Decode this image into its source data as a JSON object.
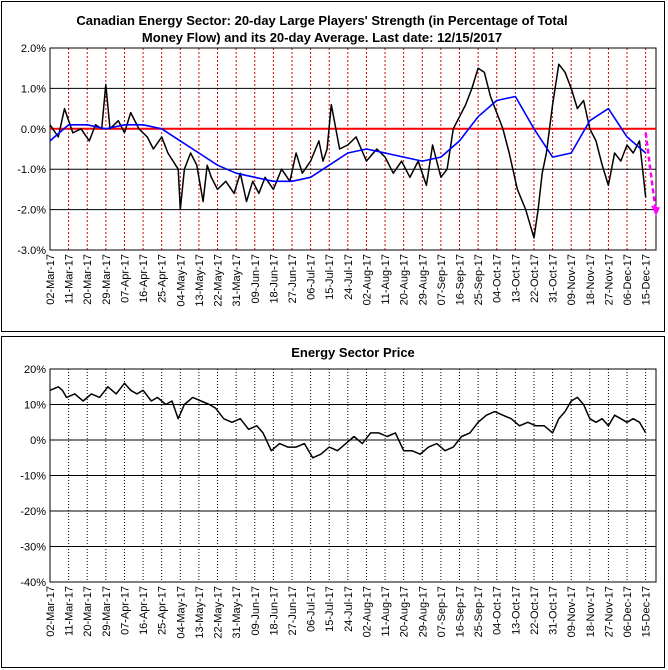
{
  "chart_data": [
    {
      "type": "line",
      "title_line1": "Canadian Energy Sector: 20-day Large Players' Strength (in Percentage of Total",
      "title_line2": "Money Flow) and its 20-day Average. Last date: 12/15/2017",
      "xlabel": "",
      "ylabel": "",
      "ylim": [
        -0.03,
        0.02
      ],
      "yticks": [
        "2.0%",
        "1.0%",
        "0.0%",
        "-1.0%",
        "-2.0%",
        "-3.0%"
      ],
      "ytick_values": [
        0.02,
        0.01,
        0.0,
        -0.01,
        -0.02,
        -0.03
      ],
      "xticks": [
        "02-Mar-17",
        "11-Mar-17",
        "20-Mar-17",
        "29-Mar-17",
        "07-Apr-17",
        "16-Apr-17",
        "25-Apr-17",
        "04-May-17",
        "13-May-17",
        "22-May-17",
        "31-May-17",
        "09-Jun-17",
        "18-Jun-17",
        "27-Jun-17",
        "06-Jul-17",
        "15-Jul-17",
        "24-Jul-17",
        "02-Aug-17",
        "11-Aug-17",
        "20-Aug-17",
        "29-Aug-17",
        "07-Sep-17",
        "16-Sep-17",
        "25-Sep-17",
        "04-Oct-17",
        "13-Oct-17",
        "22-Oct-17",
        "31-Oct-17",
        "09-Nov-17",
        "18-Nov-17",
        "27-Nov-17",
        "06-Dec-17",
        "15-Dec-17"
      ],
      "grid": true,
      "colors": {
        "strength": "#000000",
        "average": "#0000ff",
        "zero_line": "#ff0000",
        "projection": "#ff00ff",
        "vgrid": "#d40000"
      },
      "series": [
        {
          "key": "strength",
          "x": [
            "02-Mar-17",
            "06-Mar-17",
            "09-Mar-17",
            "13-Mar-17",
            "17-Mar-17",
            "21-Mar-17",
            "24-Mar-17",
            "27-Mar-17",
            "29-Mar-17",
            "31-Mar-17",
            "04-Apr-17",
            "07-Apr-17",
            "10-Apr-17",
            "14-Apr-17",
            "18-Apr-17",
            "21-Apr-17",
            "25-Apr-17",
            "28-Apr-17",
            "03-May-17",
            "04-May-17",
            "06-May-17",
            "09-May-17",
            "12-May-17",
            "15-May-17",
            "17-May-17",
            "19-May-17",
            "22-May-17",
            "26-May-17",
            "30-May-17",
            "02-Jun-17",
            "05-Jun-17",
            "08-Jun-17",
            "11-Jun-17",
            "14-Jun-17",
            "18-Jun-17",
            "22-Jun-17",
            "26-Jun-17",
            "29-Jun-17",
            "02-Jul-17",
            "06-Jul-17",
            "10-Jul-17",
            "12-Jul-17",
            "14-Jul-17",
            "16-Jul-17",
            "20-Jul-17",
            "24-Jul-17",
            "28-Jul-17",
            "02-Aug-17",
            "07-Aug-17",
            "11-Aug-17",
            "15-Aug-17",
            "19-Aug-17",
            "23-Aug-17",
            "27-Aug-17",
            "31-Aug-17",
            "03-Sep-17",
            "07-Sep-17",
            "10-Sep-17",
            "13-Sep-17",
            "16-Sep-17",
            "19-Sep-17",
            "22-Sep-17",
            "25-Sep-17",
            "28-Sep-17",
            "01-Oct-17",
            "04-Oct-17",
            "07-Oct-17",
            "10-Oct-17",
            "14-Oct-17",
            "18-Oct-17",
            "22-Oct-17",
            "24-Oct-17",
            "26-Oct-17",
            "28-Oct-17",
            "31-Oct-17",
            "03-Nov-17",
            "06-Nov-17",
            "09-Nov-17",
            "12-Nov-17",
            "15-Nov-17",
            "18-Nov-17",
            "21-Nov-17",
            "24-Nov-17",
            "27-Nov-17",
            "30-Nov-17",
            "03-Dec-17",
            "06-Dec-17",
            "09-Dec-17",
            "12-Dec-17",
            "15-Dec-17"
          ],
          "values": [
            0.001,
            -0.002,
            0.005,
            -0.001,
            0.0,
            -0.003,
            0.001,
            0.0,
            0.011,
            0.0,
            0.002,
            -0.001,
            0.004,
            0.0,
            -0.002,
            -0.005,
            -0.002,
            -0.006,
            -0.01,
            -0.02,
            -0.01,
            -0.006,
            -0.009,
            -0.018,
            -0.009,
            -0.012,
            -0.015,
            -0.013,
            -0.016,
            -0.011,
            -0.018,
            -0.013,
            -0.016,
            -0.012,
            -0.015,
            -0.01,
            -0.013,
            -0.006,
            -0.011,
            -0.008,
            -0.003,
            -0.008,
            -0.005,
            0.006,
            -0.005,
            -0.004,
            -0.002,
            -0.008,
            -0.005,
            -0.007,
            -0.011,
            -0.008,
            -0.012,
            -0.008,
            -0.014,
            -0.004,
            -0.012,
            -0.01,
            0.0,
            0.003,
            0.006,
            0.01,
            0.015,
            0.014,
            0.008,
            0.004,
            0.0,
            -0.006,
            -0.015,
            -0.02,
            -0.027,
            -0.02,
            -0.011,
            -0.006,
            0.006,
            0.016,
            0.014,
            0.01,
            0.005,
            0.007,
            0.0,
            -0.003,
            -0.009,
            -0.014,
            -0.006,
            -0.008,
            -0.004,
            -0.006,
            -0.003,
            -0.017
          ]
        },
        {
          "key": "average",
          "x": [
            "02-Mar-17",
            "11-Mar-17",
            "20-Mar-17",
            "29-Mar-17",
            "07-Apr-17",
            "16-Apr-17",
            "25-Apr-17",
            "04-May-17",
            "13-May-17",
            "22-May-17",
            "31-May-17",
            "09-Jun-17",
            "18-Jun-17",
            "27-Jun-17",
            "06-Jul-17",
            "15-Jul-17",
            "24-Jul-17",
            "02-Aug-17",
            "11-Aug-17",
            "20-Aug-17",
            "29-Aug-17",
            "07-Sep-17",
            "16-Sep-17",
            "25-Sep-17",
            "04-Oct-17",
            "13-Oct-17",
            "22-Oct-17",
            "31-Oct-17",
            "09-Nov-17",
            "18-Nov-17",
            "27-Nov-17",
            "06-Dec-17",
            "15-Dec-17"
          ],
          "values": [
            -0.003,
            0.001,
            0.001,
            0.0,
            0.001,
            0.001,
            0.0,
            -0.003,
            -0.006,
            -0.009,
            -0.011,
            -0.012,
            -0.013,
            -0.013,
            -0.012,
            -0.009,
            -0.006,
            -0.005,
            -0.006,
            -0.007,
            -0.008,
            -0.007,
            -0.003,
            0.003,
            0.007,
            0.008,
            0.0,
            -0.007,
            -0.006,
            0.002,
            0.005,
            -0.002,
            -0.006
          ]
        },
        {
          "key": "projection",
          "x": [
            "15-Dec-17",
            "20-Dec-17"
          ],
          "values": [
            -0.001,
            -0.021
          ]
        }
      ]
    },
    {
      "type": "line",
      "title": "Energy Sector Price",
      "xlabel": "",
      "ylabel": "",
      "ylim": [
        -0.4,
        0.2
      ],
      "yticks": [
        "20%",
        "10%",
        "0%",
        "-10%",
        "-20%",
        "-30%",
        "-40%"
      ],
      "ytick_values": [
        0.2,
        0.1,
        0.0,
        -0.1,
        -0.2,
        -0.3,
        -0.4
      ],
      "xticks": [
        "02-Mar-17",
        "11-Mar-17",
        "20-Mar-17",
        "29-Mar-17",
        "07-Apr-17",
        "16-Apr-17",
        "25-Apr-17",
        "04-May-17",
        "13-May-17",
        "22-May-17",
        "31-May-17",
        "09-Jun-17",
        "18-Jun-17",
        "27-Jun-17",
        "06-Jul-17",
        "15-Jul-17",
        "24-Jul-17",
        "02-Aug-17",
        "11-Aug-17",
        "20-Aug-17",
        "29-Aug-17",
        "07-Sep-17",
        "16-Sep-17",
        "25-Sep-17",
        "04-Oct-17",
        "13-Oct-17",
        "22-Oct-17",
        "31-Oct-17",
        "09-Nov-17",
        "18-Nov-17",
        "27-Nov-17",
        "06-Dec-17",
        "15-Dec-17"
      ],
      "grid": true,
      "colors": {
        "price": "#000000"
      },
      "series": [
        {
          "key": "price",
          "x": [
            "02-Mar-17",
            "06-Mar-17",
            "08-Mar-17",
            "10-Mar-17",
            "14-Mar-17",
            "18-Mar-17",
            "22-Mar-17",
            "26-Mar-17",
            "30-Mar-17",
            "03-Apr-17",
            "07-Apr-17",
            "10-Apr-17",
            "13-Apr-17",
            "16-Apr-17",
            "20-Apr-17",
            "23-Apr-17",
            "27-Apr-17",
            "30-Apr-17",
            "03-May-17",
            "06-May-17",
            "10-May-17",
            "14-May-17",
            "18-May-17",
            "21-May-17",
            "25-May-17",
            "29-May-17",
            "02-Jun-17",
            "06-Jun-17",
            "10-Jun-17",
            "13-Jun-17",
            "17-Jun-17",
            "21-Jun-17",
            "25-Jun-17",
            "29-Jun-17",
            "03-Jul-17",
            "07-Jul-17",
            "11-Jul-17",
            "15-Jul-17",
            "19-Jul-17",
            "23-Jul-17",
            "27-Jul-17",
            "31-Jul-17",
            "04-Aug-17",
            "08-Aug-17",
            "12-Aug-17",
            "16-Aug-17",
            "20-Aug-17",
            "24-Aug-17",
            "28-Aug-17",
            "01-Sep-17",
            "05-Sep-17",
            "09-Sep-17",
            "13-Sep-17",
            "17-Sep-17",
            "21-Sep-17",
            "25-Sep-17",
            "29-Sep-17",
            "03-Oct-17",
            "07-Oct-17",
            "11-Oct-17",
            "15-Oct-17",
            "19-Oct-17",
            "23-Oct-17",
            "27-Oct-17",
            "31-Oct-17",
            "03-Nov-17",
            "06-Nov-17",
            "09-Nov-17",
            "12-Nov-17",
            "15-Nov-17",
            "18-Nov-17",
            "21-Nov-17",
            "24-Nov-17",
            "27-Nov-17",
            "30-Nov-17",
            "03-Dec-17",
            "06-Dec-17",
            "09-Dec-17",
            "12-Dec-17",
            "15-Dec-17"
          ],
          "values": [
            0.14,
            0.15,
            0.14,
            0.12,
            0.13,
            0.11,
            0.13,
            0.12,
            0.15,
            0.13,
            0.16,
            0.14,
            0.13,
            0.14,
            0.11,
            0.12,
            0.1,
            0.11,
            0.06,
            0.1,
            0.12,
            0.11,
            0.1,
            0.09,
            0.06,
            0.05,
            0.06,
            0.03,
            0.04,
            0.02,
            -0.03,
            -0.01,
            -0.02,
            -0.02,
            -0.01,
            -0.05,
            -0.04,
            -0.02,
            -0.03,
            -0.01,
            0.01,
            -0.01,
            0.02,
            0.02,
            0.01,
            0.02,
            -0.03,
            -0.03,
            -0.04,
            -0.02,
            -0.01,
            -0.03,
            -0.02,
            0.01,
            0.02,
            0.05,
            0.07,
            0.08,
            0.07,
            0.06,
            0.04,
            0.05,
            0.04,
            0.04,
            0.02,
            0.06,
            0.08,
            0.11,
            0.12,
            0.1,
            0.06,
            0.05,
            0.06,
            0.04,
            0.07,
            0.06,
            0.05,
            0.06,
            0.05,
            0.02
          ]
        }
      ]
    }
  ]
}
